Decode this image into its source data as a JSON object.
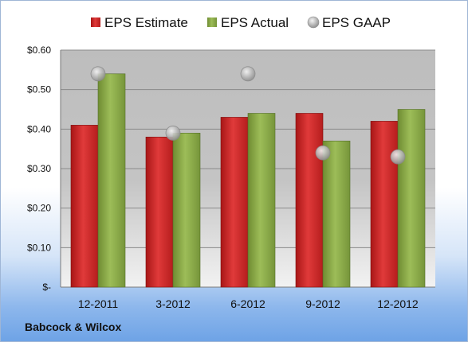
{
  "company": "Babcock & Wilcox",
  "colors": {
    "estimate": "#d42a2a",
    "actual": "#8fae4a",
    "gaap": "#b8b8b8"
  },
  "chart_data": {
    "type": "bar",
    "categories": [
      "12-2011",
      "3-2012",
      "6-2012",
      "9-2012",
      "12-2012"
    ],
    "series": [
      {
        "name": "EPS Estimate",
        "kind": "bar",
        "values": [
          0.41,
          0.38,
          0.43,
          0.44,
          0.42
        ]
      },
      {
        "name": "EPS Actual",
        "kind": "bar",
        "values": [
          0.54,
          0.39,
          0.44,
          0.37,
          0.45
        ]
      },
      {
        "name": "EPS GAAP",
        "kind": "scatter",
        "values": [
          0.54,
          0.39,
          0.54,
          0.34,
          0.33
        ]
      }
    ],
    "ylim": [
      0,
      0.6
    ],
    "yticks": [
      0,
      0.1,
      0.2,
      0.3,
      0.4,
      0.5,
      0.6
    ],
    "ytick_labels": [
      "$-",
      "$0.10",
      "$0.20",
      "$0.30",
      "$0.40",
      "$0.50",
      "$0.60"
    ],
    "grid": true,
    "legend_position": "top"
  }
}
